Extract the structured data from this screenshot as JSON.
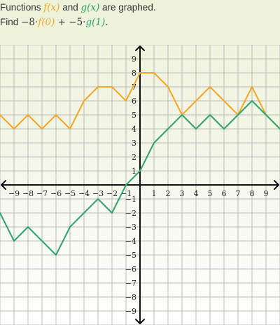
{
  "prompt": {
    "line1": {
      "pre": "Functions ",
      "f": "f(x)",
      "mid": " and ",
      "g": "g(x)",
      "post": " are graphed."
    },
    "line2": {
      "find": "Find ",
      "term1_coef": "−8",
      "dot1": "·",
      "term1_fn": "f(0)",
      "plus": " + ",
      "term2_coef": "−5",
      "dot2": "·",
      "term2_fn": "g(1)",
      "period": "."
    }
  },
  "colors": {
    "f": "#f5a623",
    "g": "#2fa36b",
    "grid": "#bcbcbc",
    "axis": "#111111"
  },
  "chart_data": {
    "type": "line",
    "xlim": [
      -10,
      10
    ],
    "ylim": [
      -10,
      10
    ],
    "grid": true,
    "x_ticks": [
      "−9",
      "−8",
      "−7",
      "−6",
      "−5",
      "−4",
      "−3",
      "−2",
      "−1",
      "1",
      "2",
      "3",
      "4",
      "5",
      "6",
      "7",
      "8",
      "9"
    ],
    "y_ticks": [
      "9",
      "8",
      "7",
      "6",
      "5",
      "4",
      "3",
      "2",
      "1",
      "−1",
      "−2",
      "−3",
      "−4",
      "−5",
      "−6",
      "−7",
      "−8",
      "−9"
    ],
    "series": [
      {
        "name": "f(x)",
        "color": "#f5a623",
        "points": [
          [
            -10,
            5
          ],
          [
            -9,
            4
          ],
          [
            -8,
            5
          ],
          [
            -7,
            4
          ],
          [
            -6,
            5
          ],
          [
            -5,
            4
          ],
          [
            -4,
            6
          ],
          [
            -3,
            7
          ],
          [
            -2,
            7
          ],
          [
            -1,
            6
          ],
          [
            0,
            8
          ],
          [
            1,
            8
          ],
          [
            2,
            7
          ],
          [
            3,
            5
          ],
          [
            4,
            6
          ],
          [
            5,
            7
          ],
          [
            6,
            6
          ],
          [
            7,
            5
          ],
          [
            8,
            7
          ],
          [
            9,
            5
          ],
          [
            10,
            4
          ]
        ]
      },
      {
        "name": "g(x)",
        "color": "#2fa36b",
        "points": [
          [
            -10,
            -2
          ],
          [
            -9,
            -4
          ],
          [
            -8,
            -3
          ],
          [
            -7,
            -4
          ],
          [
            -6,
            -5
          ],
          [
            -5,
            -3
          ],
          [
            -4,
            -2
          ],
          [
            -3,
            -1
          ],
          [
            -2,
            -2
          ],
          [
            -1,
            0
          ],
          [
            0,
            1
          ],
          [
            1,
            3
          ],
          [
            2,
            4
          ],
          [
            3,
            5
          ],
          [
            4,
            4
          ],
          [
            5,
            5
          ],
          [
            6,
            4
          ],
          [
            7,
            5
          ],
          [
            8,
            6
          ],
          [
            9,
            5
          ],
          [
            10,
            4
          ]
        ]
      }
    ]
  }
}
